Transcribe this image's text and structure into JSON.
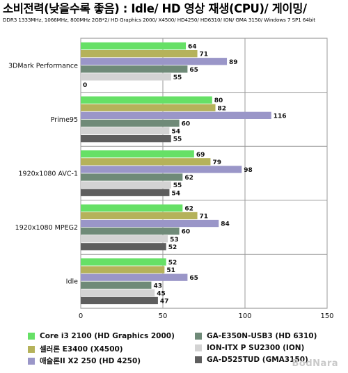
{
  "title": "소비전력(낮을수록 좋음) : Idle/ HD 영상 재생(CPU)/ 게이밍/",
  "subtitle": "DDR3 1333MHz, 1066MHz, 800MHz 2GB*2/ HD Graphics 2000/ X4500/ HD4250/ HD6310/ ION/ GMA 3150/ Windows 7 SP1 64bit",
  "watermark": "BodNara",
  "chart_data": {
    "type": "bar",
    "orientation": "horizontal",
    "title": "",
    "xlabel": "",
    "ylabel": "",
    "xlim": [
      0,
      150
    ],
    "x_ticks": [
      "0",
      "50",
      "100",
      "150"
    ],
    "grid": true,
    "legend_position": "bottom",
    "categories": [
      "3DMark Performance",
      "Prime95",
      "1920x1080 AVC-1",
      "1920x1080 MPEG2",
      "Idle"
    ],
    "series": [
      {
        "name": "Core i3 2100 (HD Graphics 2000)",
        "color": "#66e066",
        "values": [
          64,
          80,
          69,
          62,
          52
        ]
      },
      {
        "name": "셀러론 E3400 (X4500)",
        "color": "#b5b25a",
        "values": [
          71,
          82,
          79,
          71,
          51
        ]
      },
      {
        "name": "애슬론II X2 250 (HD 4250)",
        "color": "#9a96c8",
        "values": [
          89,
          116,
          98,
          84,
          65
        ]
      },
      {
        "name": "GA-E350N-USB3 (HD 6310)",
        "color": "#6f8a78",
        "values": [
          65,
          60,
          62,
          60,
          43
        ]
      },
      {
        "name": "ION-ITX P SU2300 (ION)",
        "color": "#d3d3d3",
        "values": [
          55,
          54,
          55,
          53,
          45
        ]
      },
      {
        "name": "GA-D525TUD (GMA3150)",
        "color": "#5e5e5e",
        "values": [
          0,
          55,
          54,
          52,
          47
        ]
      }
    ]
  }
}
